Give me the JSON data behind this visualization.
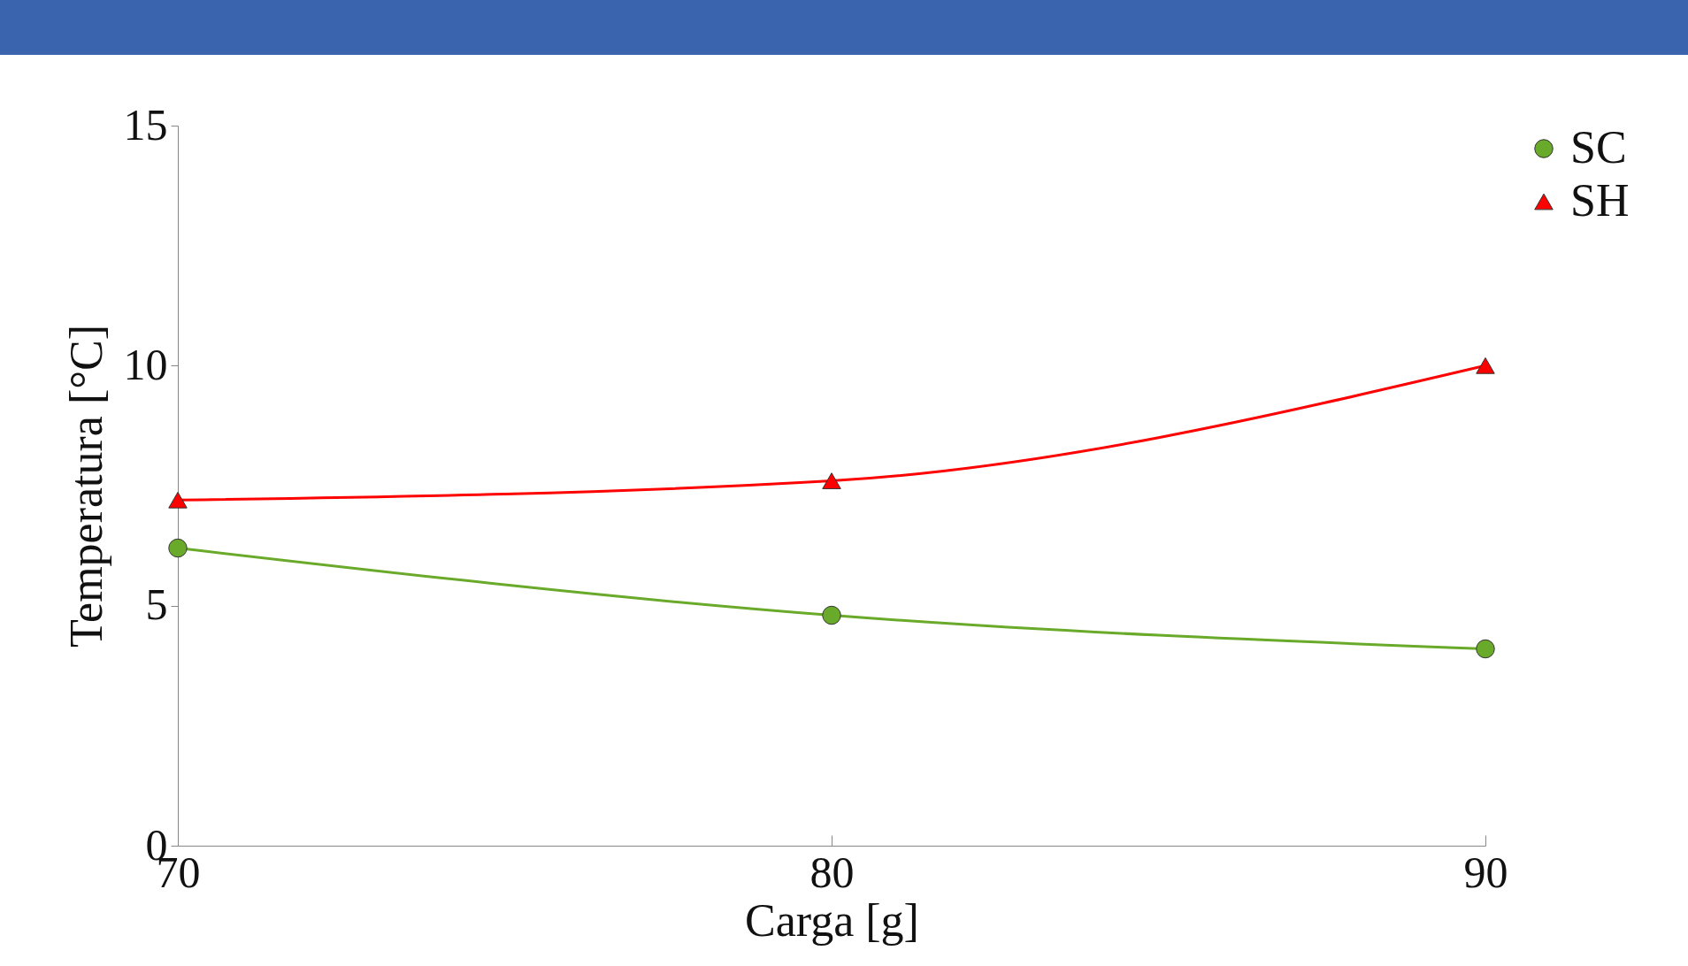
{
  "chart_data": {
    "type": "line",
    "xlabel": "Carga [g]",
    "ylabel": "Temperatura [°C]",
    "x": [
      70,
      80,
      90
    ],
    "xlim": [
      70,
      90
    ],
    "xticks": [
      70,
      80,
      90
    ],
    "ylim": [
      0,
      15
    ],
    "yticks": [
      0,
      5,
      10,
      15
    ],
    "grid": false,
    "legend": "right",
    "series": [
      {
        "name": "SC",
        "color": "#6aaa2a",
        "marker": "circle",
        "values": [
          6.2,
          4.8,
          4.1
        ]
      },
      {
        "name": "SH",
        "color": "#ff0000",
        "marker": "triangle",
        "values": [
          7.2,
          7.6,
          10.0
        ]
      }
    ]
  }
}
